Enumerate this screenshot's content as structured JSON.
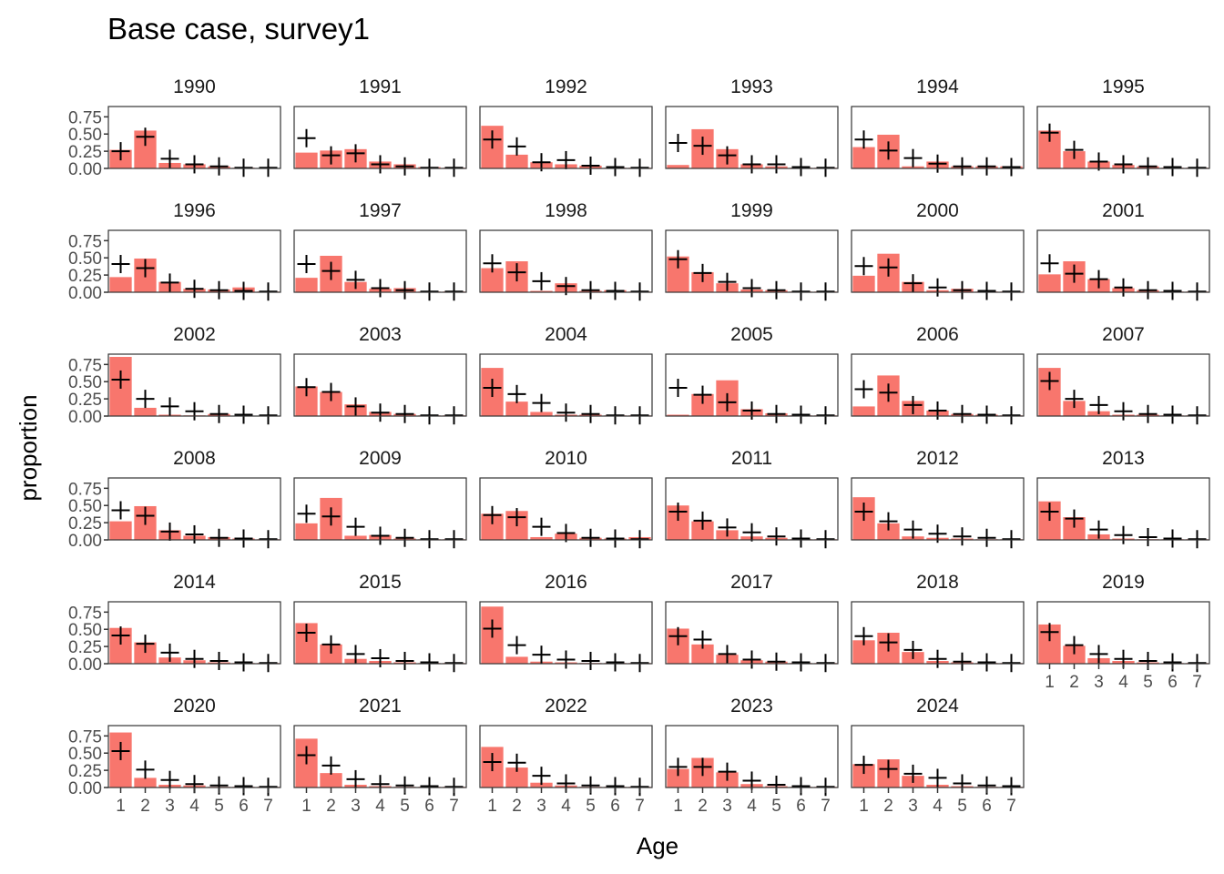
{
  "chart_data": {
    "type": "bar",
    "title": "Base case, survey1",
    "xlabel": "Age",
    "ylabel": "proportion",
    "ages": [
      "1",
      "2",
      "3",
      "4",
      "5",
      "6",
      "7"
    ],
    "yticks": [
      "0.00",
      "0.25",
      "0.50",
      "0.75"
    ],
    "ylim": [
      0,
      0.9
    ],
    "colors": {
      "bar": "#F8766D",
      "cross": "#000000",
      "border": "#333333"
    },
    "series_description": [
      "observed (bars)",
      "expected (crosses)"
    ],
    "panels": [
      {
        "year": "1990",
        "obs": [
          0.27,
          0.55,
          0.08,
          0.06,
          0.03,
          0.01,
          0.0
        ],
        "exp": [
          0.25,
          0.46,
          0.14,
          0.06,
          0.03,
          0.01,
          0.01
        ]
      },
      {
        "year": "1991",
        "obs": [
          0.23,
          0.26,
          0.28,
          0.1,
          0.06,
          0.02,
          0.01
        ],
        "exp": [
          0.44,
          0.19,
          0.22,
          0.06,
          0.03,
          0.01,
          0.01
        ]
      },
      {
        "year": "1992",
        "obs": [
          0.62,
          0.2,
          0.09,
          0.06,
          0.04,
          0.01,
          0.01
        ],
        "exp": [
          0.42,
          0.32,
          0.09,
          0.12,
          0.04,
          0.02,
          0.01
        ]
      },
      {
        "year": "1993",
        "obs": [
          0.05,
          0.57,
          0.28,
          0.06,
          0.03,
          0.01,
          0.01
        ],
        "exp": [
          0.37,
          0.33,
          0.19,
          0.06,
          0.06,
          0.02,
          0.01
        ]
      },
      {
        "year": "1994",
        "obs": [
          0.31,
          0.49,
          0.03,
          0.1,
          0.03,
          0.03,
          0.03
        ],
        "exp": [
          0.42,
          0.26,
          0.15,
          0.07,
          0.03,
          0.03,
          0.02
        ]
      },
      {
        "year": "1995",
        "obs": [
          0.55,
          0.25,
          0.1,
          0.05,
          0.03,
          0.01,
          0.01
        ],
        "exp": [
          0.52,
          0.27,
          0.1,
          0.06,
          0.03,
          0.02,
          0.01
        ]
      },
      {
        "year": "1996",
        "obs": [
          0.22,
          0.49,
          0.15,
          0.05,
          0.04,
          0.07,
          0.01
        ],
        "exp": [
          0.41,
          0.35,
          0.14,
          0.05,
          0.03,
          0.02,
          0.01
        ]
      },
      {
        "year": "1997",
        "obs": [
          0.21,
          0.53,
          0.15,
          0.05,
          0.06,
          0.01,
          0.01
        ],
        "exp": [
          0.41,
          0.31,
          0.18,
          0.06,
          0.03,
          0.01,
          0.01
        ]
      },
      {
        "year": "1998",
        "obs": [
          0.35,
          0.45,
          0.02,
          0.13,
          0.02,
          0.03,
          0.01
        ],
        "exp": [
          0.42,
          0.29,
          0.16,
          0.09,
          0.03,
          0.02,
          0.01
        ]
      },
      {
        "year": "1999",
        "obs": [
          0.52,
          0.29,
          0.13,
          0.04,
          0.03,
          0.01,
          0.01
        ],
        "exp": [
          0.48,
          0.28,
          0.15,
          0.06,
          0.03,
          0.01,
          0.01
        ]
      },
      {
        "year": "2000",
        "obs": [
          0.24,
          0.56,
          0.15,
          0.03,
          0.05,
          0.01,
          0.01
        ],
        "exp": [
          0.38,
          0.36,
          0.13,
          0.07,
          0.03,
          0.02,
          0.01
        ]
      },
      {
        "year": "2001",
        "obs": [
          0.26,
          0.45,
          0.19,
          0.06,
          0.03,
          0.01,
          0.01
        ],
        "exp": [
          0.42,
          0.27,
          0.19,
          0.07,
          0.03,
          0.02,
          0.01
        ]
      },
      {
        "year": "2002",
        "obs": [
          0.86,
          0.12,
          0.02,
          0.01,
          0.03,
          0.0,
          0.0
        ],
        "exp": [
          0.53,
          0.25,
          0.14,
          0.07,
          0.03,
          0.02,
          0.01
        ]
      },
      {
        "year": "2003",
        "obs": [
          0.43,
          0.35,
          0.17,
          0.06,
          0.03,
          0.01,
          0.01
        ],
        "exp": [
          0.42,
          0.35,
          0.14,
          0.05,
          0.03,
          0.01,
          0.01
        ]
      },
      {
        "year": "2004",
        "obs": [
          0.7,
          0.21,
          0.06,
          0.02,
          0.02,
          0.01,
          0.01
        ],
        "exp": [
          0.41,
          0.32,
          0.19,
          0.05,
          0.03,
          0.01,
          0.01
        ]
      },
      {
        "year": "2005",
        "obs": [
          0.02,
          0.32,
          0.52,
          0.1,
          0.04,
          0.01,
          0.01
        ],
        "exp": [
          0.41,
          0.31,
          0.2,
          0.08,
          0.03,
          0.02,
          0.01
        ]
      },
      {
        "year": "2006",
        "obs": [
          0.14,
          0.59,
          0.22,
          0.08,
          0.03,
          0.02,
          0.01
        ],
        "exp": [
          0.39,
          0.34,
          0.16,
          0.08,
          0.03,
          0.02,
          0.01
        ]
      },
      {
        "year": "2007",
        "obs": [
          0.7,
          0.22,
          0.07,
          0.02,
          0.02,
          0.01,
          0.01
        ],
        "exp": [
          0.51,
          0.25,
          0.16,
          0.07,
          0.03,
          0.02,
          0.01
        ]
      },
      {
        "year": "2008",
        "obs": [
          0.27,
          0.49,
          0.14,
          0.06,
          0.04,
          0.02,
          0.01
        ],
        "exp": [
          0.43,
          0.35,
          0.12,
          0.08,
          0.03,
          0.02,
          0.01
        ]
      },
      {
        "year": "2009",
        "obs": [
          0.24,
          0.61,
          0.06,
          0.07,
          0.02,
          0.01,
          0.01
        ],
        "exp": [
          0.38,
          0.34,
          0.19,
          0.06,
          0.03,
          0.01,
          0.01
        ]
      },
      {
        "year": "2010",
        "obs": [
          0.38,
          0.42,
          0.04,
          0.09,
          0.03,
          0.02,
          0.04
        ],
        "exp": [
          0.36,
          0.33,
          0.19,
          0.1,
          0.03,
          0.02,
          0.01
        ]
      },
      {
        "year": "2011",
        "obs": [
          0.5,
          0.27,
          0.14,
          0.05,
          0.03,
          0.01,
          0.01
        ],
        "exp": [
          0.41,
          0.28,
          0.18,
          0.11,
          0.05,
          0.02,
          0.01
        ]
      },
      {
        "year": "2012",
        "obs": [
          0.62,
          0.24,
          0.05,
          0.03,
          0.02,
          0.01,
          0.01
        ],
        "exp": [
          0.41,
          0.27,
          0.15,
          0.09,
          0.05,
          0.03,
          0.01
        ]
      },
      {
        "year": "2013",
        "obs": [
          0.56,
          0.33,
          0.08,
          0.02,
          0.01,
          0.01,
          0.01
        ],
        "exp": [
          0.41,
          0.31,
          0.15,
          0.07,
          0.04,
          0.02,
          0.01
        ]
      },
      {
        "year": "2014",
        "obs": [
          0.52,
          0.31,
          0.09,
          0.05,
          0.02,
          0.01,
          0.01
        ],
        "exp": [
          0.41,
          0.29,
          0.16,
          0.07,
          0.04,
          0.02,
          0.01
        ]
      },
      {
        "year": "2015",
        "obs": [
          0.59,
          0.28,
          0.07,
          0.04,
          0.02,
          0.01,
          0.01
        ],
        "exp": [
          0.45,
          0.28,
          0.14,
          0.08,
          0.04,
          0.02,
          0.01
        ]
      },
      {
        "year": "2016",
        "obs": [
          0.83,
          0.1,
          0.03,
          0.02,
          0.01,
          0.01,
          0.01
        ],
        "exp": [
          0.51,
          0.27,
          0.13,
          0.06,
          0.04,
          0.02,
          0.01
        ]
      },
      {
        "year": "2017",
        "obs": [
          0.51,
          0.28,
          0.13,
          0.05,
          0.03,
          0.01,
          0.01
        ],
        "exp": [
          0.4,
          0.35,
          0.14,
          0.06,
          0.03,
          0.02,
          0.01
        ]
      },
      {
        "year": "2018",
        "obs": [
          0.34,
          0.45,
          0.17,
          0.04,
          0.02,
          0.01,
          0.01
        ],
        "exp": [
          0.4,
          0.31,
          0.2,
          0.07,
          0.03,
          0.02,
          0.01
        ]
      },
      {
        "year": "2019",
        "obs": [
          0.57,
          0.26,
          0.08,
          0.04,
          0.02,
          0.01,
          0.01
        ],
        "exp": [
          0.46,
          0.27,
          0.14,
          0.07,
          0.04,
          0.02,
          0.01
        ]
      },
      {
        "year": "2020",
        "obs": [
          0.8,
          0.14,
          0.04,
          0.03,
          0.01,
          0.01,
          0.01
        ],
        "exp": [
          0.53,
          0.26,
          0.11,
          0.05,
          0.03,
          0.02,
          0.01
        ]
      },
      {
        "year": "2021",
        "obs": [
          0.71,
          0.21,
          0.04,
          0.02,
          0.01,
          0.01,
          0.01
        ],
        "exp": [
          0.47,
          0.32,
          0.12,
          0.05,
          0.03,
          0.02,
          0.01
        ]
      },
      {
        "year": "2022",
        "obs": [
          0.59,
          0.29,
          0.07,
          0.03,
          0.01,
          0.01,
          0.01
        ],
        "exp": [
          0.37,
          0.36,
          0.17,
          0.06,
          0.03,
          0.02,
          0.01
        ]
      },
      {
        "year": "2023",
        "obs": [
          0.27,
          0.43,
          0.22,
          0.05,
          0.02,
          0.01,
          0.01
        ],
        "exp": [
          0.3,
          0.3,
          0.23,
          0.1,
          0.04,
          0.02,
          0.01
        ]
      },
      {
        "year": "2024",
        "obs": [
          0.34,
          0.41,
          0.17,
          0.04,
          0.02,
          0.01,
          0.01
        ],
        "exp": [
          0.33,
          0.27,
          0.2,
          0.14,
          0.06,
          0.03,
          0.02
        ]
      }
    ]
  }
}
